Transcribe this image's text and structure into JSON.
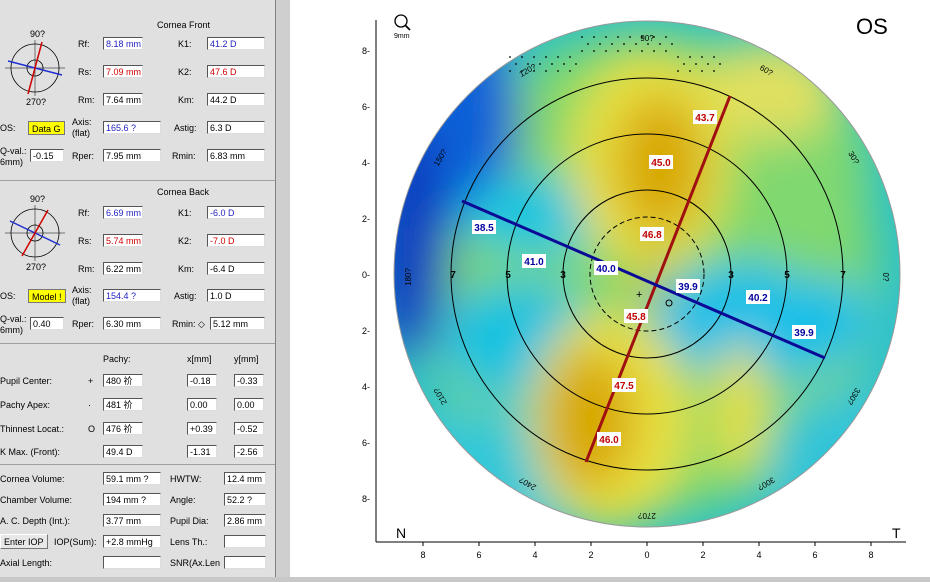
{
  "front": {
    "title": "Cornea Front",
    "mini_top": "90?",
    "mini_bottom": "270?",
    "rf_label": "Rf:",
    "rf": "8.18 mm",
    "rs_label": "Rs:",
    "rs": "7.09 mm",
    "rm_label": "Rm:",
    "rm": "7.64 mm",
    "k1_label": "K1:",
    "k1": "41.2 D",
    "k2_label": "K2:",
    "k2": "47.6 D",
    "km_label": "Km:",
    "km": "44.2 D",
    "qs_label": "OS:",
    "qs_badge": "Data G",
    "axis_label": "Axis:\n(flat)",
    "axis": "165.6 ?",
    "astig_label": "Astig:",
    "astig": "6.3 D",
    "qval_label": "Q-val.:\n6mm)",
    "qval": "-0.15",
    "rper_label": "Rper:",
    "rper": "7.95 mm",
    "rmin_label": "Rmin:",
    "rmin": "6.83 mm"
  },
  "back": {
    "title": "Cornea Back",
    "mini_top": "90?",
    "mini_bottom": "270?",
    "rf_label": "Rf:",
    "rf": "6.69 mm",
    "rs_label": "Rs:",
    "rs": "5.74 mm",
    "rm_label": "Rm:",
    "rm": "6.22 mm",
    "k1_label": "K1:",
    "k1": "-6.0 D",
    "k2_label": "K2:",
    "k2": "-7.0 D",
    "km_label": "Km:",
    "km": "-6.4 D",
    "qs_label": "OS:",
    "qs_badge": "Model !",
    "axis_label": "Axis:\n(flat)",
    "axis": "154.4 ?",
    "astig_label": "Astig:",
    "astig": "1.0 D",
    "qval_label": "Q-val.:\n6mm)",
    "qval": "0.40",
    "rper_label": "Rper:",
    "rper": "6.30 mm",
    "rmin_label": "Rmin: ◇",
    "rmin": "5.12 mm"
  },
  "pachy": {
    "col_pachy": "Pachy:",
    "col_x": "x[mm]",
    "col_y": "y[mm]",
    "rows": [
      {
        "label": "Pupil Center:",
        "sym": "+",
        "pachy": "480 祄",
        "x": "-0.18",
        "y": "-0.33"
      },
      {
        "label": "Pachy Apex:",
        "sym": "·",
        "pachy": "481 祄",
        "x": "0.00",
        "y": "0.00"
      },
      {
        "label": "Thinnest Locat.:",
        "sym": "O",
        "pachy": "476 祄",
        "x": "+0.39",
        "y": "-0.52"
      },
      {
        "label": "K Max. (Front):",
        "sym": "",
        "pachy": "49.4 D",
        "x": "-1.31",
        "y": "-2.56"
      }
    ]
  },
  "volume": {
    "cornea_volume_label": "Cornea Volume:",
    "cornea_volume": "59.1 mm ?",
    "hwtw_label": "HWTW:",
    "hwtw": "12.4 mm",
    "chamber_volume_label": "Chamber Volume:",
    "chamber_volume": "194 mm ?",
    "angle_label": "Angle:",
    "angle": "52.2 ?",
    "acd_label": "A. C. Depth (Int.):",
    "acd": "3.77 mm",
    "pupil_dia_label": "Pupil Dia:",
    "pupil_dia": "2.86 mm",
    "enter_iop_button": "Enter IOP",
    "iop_label": "IOP(Sum):",
    "iop": "+2.8 mmHg",
    "lens_label": "Lens Th.:",
    "lens": "",
    "axial_label": "Axial Length:",
    "axial": "",
    "snr_label": "SNR(Ax.Len",
    "snr": ""
  },
  "map": {
    "eye": "OS",
    "zoom_icon_label": "9mm",
    "nasal": "N",
    "temporal": "T",
    "y_ticks": [
      "8-",
      "6-",
      "4-",
      "2-",
      "0-",
      "2-",
      "4-",
      "6-",
      "8-"
    ],
    "x_ticks": [
      "8",
      "6",
      "4",
      "2",
      "0",
      "2",
      "4",
      "6",
      "8"
    ],
    "degree_labels": [
      "90?",
      "60?",
      "30?",
      "0?",
      "330?",
      "300?",
      "270?",
      "240?",
      "210?",
      "180?",
      "150?",
      "120?"
    ],
    "ring_labels": [
      "7",
      "5",
      "3",
      "3",
      "5",
      "7"
    ],
    "flat_values": [
      "38.5",
      "41.0",
      "40.0",
      "39.9",
      "40.2",
      "39.9"
    ],
    "steep_values": [
      "43.7",
      "45.0",
      "46.8",
      "45.8",
      "47.5",
      "46.0"
    ],
    "colors": {
      "steep": "#b10000",
      "flat": "#0a0a96",
      "steep_text": "#c00000",
      "flat_text": "#0000a0"
    }
  }
}
